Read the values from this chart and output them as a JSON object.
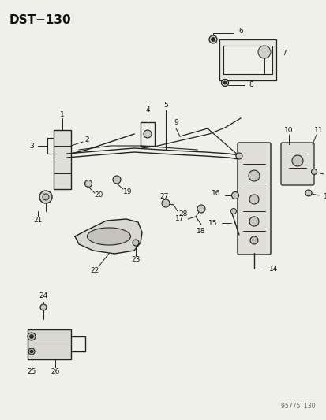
{
  "title": "DST−130",
  "watermark": "95775  130",
  "bg_color": "#f0f0eb",
  "line_color": "#222222",
  "text_color": "#111111",
  "fig_w": 4.14,
  "fig_h": 5.33,
  "dpi": 100
}
